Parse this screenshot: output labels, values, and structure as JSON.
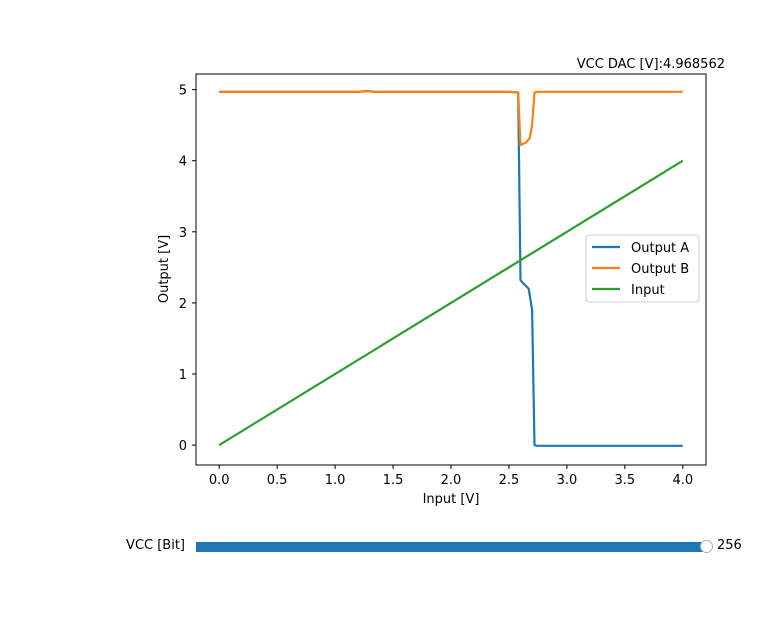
{
  "chart_data": {
    "type": "line",
    "title": "VCC DAC [V]:4.968562",
    "xlabel": "Input [V]",
    "ylabel": "Output [V]",
    "xlim": [
      -0.2,
      4.2
    ],
    "ylim": [
      -0.28,
      5.22
    ],
    "xticks": [
      0.0,
      0.5,
      1.0,
      1.5,
      2.0,
      2.5,
      3.0,
      3.5,
      4.0
    ],
    "xtick_labels": [
      "0.0",
      "0.5",
      "1.0",
      "1.5",
      "2.0",
      "2.5",
      "3.0",
      "3.5",
      "4.0"
    ],
    "yticks": [
      0,
      1,
      2,
      3,
      4,
      5
    ],
    "ytick_labels": [
      "0",
      "1",
      "2",
      "3",
      "4",
      "5"
    ],
    "grid": false,
    "legend_position": "center-right",
    "series": [
      {
        "name": "Output A",
        "color": "#1f77b4",
        "x": [
          0.0,
          0.5,
          1.0,
          1.2,
          1.27,
          1.35,
          1.5,
          2.0,
          2.5,
          2.58,
          2.6,
          2.62,
          2.67,
          2.7,
          2.72,
          2.74,
          3.0,
          3.5,
          4.0
        ],
        "y": [
          4.97,
          4.97,
          4.97,
          4.97,
          4.98,
          4.97,
          4.97,
          4.97,
          4.97,
          4.96,
          2.32,
          2.28,
          2.2,
          1.9,
          0.0,
          -0.01,
          -0.01,
          -0.01,
          -0.01
        ]
      },
      {
        "name": "Output B",
        "color": "#ff7f0e",
        "x": [
          0.0,
          0.5,
          1.0,
          1.2,
          1.27,
          1.35,
          1.5,
          2.0,
          2.5,
          2.58,
          2.6,
          2.65,
          2.68,
          2.7,
          2.72,
          2.75,
          3.0,
          3.5,
          4.0
        ],
        "y": [
          4.97,
          4.97,
          4.97,
          4.97,
          4.98,
          4.97,
          4.97,
          4.97,
          4.97,
          4.96,
          4.22,
          4.26,
          4.32,
          4.5,
          4.96,
          4.97,
          4.97,
          4.97,
          4.97
        ]
      },
      {
        "name": "Input",
        "color": "#2ca02c",
        "x": [
          0.0,
          4.0
        ],
        "y": [
          0.0,
          4.0
        ]
      }
    ]
  },
  "slider": {
    "label": "VCC [Bit]",
    "value": 256,
    "value_text": "256",
    "min": 0,
    "max": 256,
    "fill_color": "#1f77b4"
  }
}
